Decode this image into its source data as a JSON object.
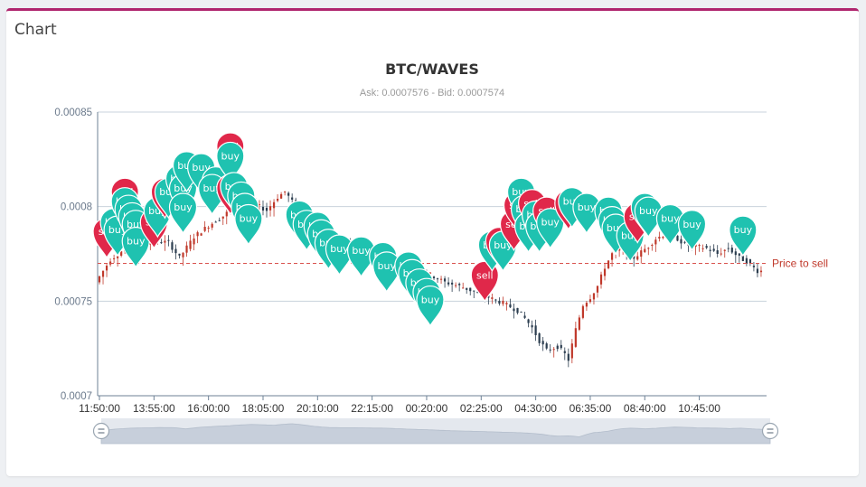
{
  "card": {
    "title": "Chart"
  },
  "chart_data": {
    "type": "candlestick",
    "title": "BTC/WAVES",
    "subtitle": "Ask: 0.0007576 - Bid: 0.0007574",
    "y_ticks": [
      "0.00085",
      "0.0008",
      "0.00075",
      "0.0007"
    ],
    "ylim": [
      0.0007,
      0.00085
    ],
    "x_ticks": [
      "11:50:00",
      "13:55:00",
      "16:00:00",
      "18:05:00",
      "20:10:00",
      "22:15:00",
      "00:20:00",
      "02:25:00",
      "04:30:00",
      "06:35:00",
      "08:40:00",
      "10:45:00"
    ],
    "grid": true,
    "price_to_sell": {
      "value": 0.00077,
      "label": "Price to sell"
    },
    "colors": {
      "buy": "#1fc2b0",
      "sell": "#e0284a",
      "up": "#c0392b",
      "down": "#2c3e50",
      "axis": "#6e8296",
      "mark_line": "#d9534f"
    },
    "price_path": [
      [
        0,
        0.00076
      ],
      [
        4,
        0.000772
      ],
      [
        8,
        0.000778
      ],
      [
        12,
        0.00078
      ],
      [
        16,
        0.000782
      ],
      [
        20,
        0.000781
      ],
      [
        23,
        0.000773
      ],
      [
        27,
        0.000784
      ],
      [
        31,
        0.00079
      ],
      [
        35,
        0.000795
      ],
      [
        38,
        0.0008
      ],
      [
        41,
        0.000803
      ],
      [
        44,
        0.000801
      ],
      [
        47,
        0.000798
      ],
      [
        50,
        0.000805
      ],
      [
        52,
        0.000808
      ],
      [
        55,
        0.0008
      ],
      [
        58,
        0.00079
      ],
      [
        62,
        0.000782
      ],
      [
        65,
        0.000781
      ],
      [
        69,
        0.000781
      ],
      [
        73,
        0.000779
      ],
      [
        77,
        0.000778
      ],
      [
        80,
        0.000775
      ],
      [
        84,
        0.000771
      ],
      [
        88,
        0.000768
      ],
      [
        92,
        0.000764
      ],
      [
        96,
        0.00076
      ],
      [
        100,
        0.000758
      ],
      [
        104,
        0.000755
      ],
      [
        108,
        0.000752
      ],
      [
        112,
        0.000749
      ],
      [
        116,
        0.000745
      ],
      [
        118,
        0.000741
      ],
      [
        120,
        0.000736
      ],
      [
        122,
        0.000729
      ],
      [
        124,
        0.000724
      ],
      [
        127,
        0.000726
      ],
      [
        129,
        0.000722
      ],
      [
        130,
        0.000719
      ],
      [
        132,
        0.000735
      ],
      [
        134,
        0.000748
      ],
      [
        136,
        0.000752
      ],
      [
        138,
        0.000758
      ],
      [
        140,
        0.000768
      ],
      [
        142,
        0.000775
      ],
      [
        144,
        0.000778
      ],
      [
        146,
        0.000776
      ],
      [
        148,
        0.000773
      ],
      [
        150,
        0.000776
      ],
      [
        152,
        0.000779
      ],
      [
        154,
        0.000783
      ],
      [
        156,
        0.000785
      ],
      [
        158,
        0.000784
      ],
      [
        160,
        0.000783
      ],
      [
        162,
        0.00078
      ],
      [
        165,
        0.000779
      ],
      [
        168,
        0.000778
      ],
      [
        171,
        0.000775
      ],
      [
        174,
        0.000778
      ],
      [
        177,
        0.000773
      ],
      [
        179,
        0.000771
      ],
      [
        182,
        0.000766
      ]
    ],
    "markers": [
      {
        "kind": "sell",
        "x": 2,
        "y": 0.000773
      },
      {
        "kind": "buy",
        "x": 4,
        "y": 0.000778
      },
      {
        "kind": "buy",
        "x": 5,
        "y": 0.000774
      },
      {
        "kind": "sell",
        "x": 7,
        "y": 0.000794
      },
      {
        "kind": "buy",
        "x": 7,
        "y": 0.000789
      },
      {
        "kind": "buy",
        "x": 8,
        "y": 0.000785
      },
      {
        "kind": "buy",
        "x": 9,
        "y": 0.000781
      },
      {
        "kind": "buy",
        "x": 10,
        "y": 0.000777
      },
      {
        "kind": "buy",
        "x": 10,
        "y": 0.000768
      },
      {
        "kind": "sell",
        "x": 15,
        "y": 0.000778
      },
      {
        "kind": "buy",
        "x": 16,
        "y": 0.000784
      },
      {
        "kind": "sell",
        "x": 18,
        "y": 0.000794
      },
      {
        "kind": "buy",
        "x": 19,
        "y": 0.000794
      },
      {
        "kind": "buy",
        "x": 22,
        "y": 0.000801
      },
      {
        "kind": "buy",
        "x": 23,
        "y": 0.000796
      },
      {
        "kind": "buy",
        "x": 23,
        "y": 0.000786
      },
      {
        "kind": "buy",
        "x": 24,
        "y": 0.000808
      },
      {
        "kind": "buy",
        "x": 28,
        "y": 0.000807
      },
      {
        "kind": "buy",
        "x": 32,
        "y": 0.0008
      },
      {
        "kind": "buy",
        "x": 31,
        "y": 0.000796
      },
      {
        "kind": "sell",
        "x": 36,
        "y": 0.000796
      },
      {
        "kind": "sell",
        "x": 36,
        "y": 0.000818
      },
      {
        "kind": "buy",
        "x": 36,
        "y": 0.000813
      },
      {
        "kind": "buy",
        "x": 37,
        "y": 0.000797
      },
      {
        "kind": "buy",
        "x": 39,
        "y": 0.000792
      },
      {
        "kind": "buy",
        "x": 40,
        "y": 0.000786
      },
      {
        "kind": "buy",
        "x": 41,
        "y": 0.00078
      },
      {
        "kind": "buy",
        "x": 55,
        "y": 0.000782
      },
      {
        "kind": "buy",
        "x": 57,
        "y": 0.000777
      },
      {
        "kind": "buy",
        "x": 60,
        "y": 0.000776
      },
      {
        "kind": "buy",
        "x": 61,
        "y": 0.000772
      },
      {
        "kind": "buy",
        "x": 63,
        "y": 0.000767
      },
      {
        "kind": "buy",
        "x": 66,
        "y": 0.000764
      },
      {
        "kind": "buy",
        "x": 72,
        "y": 0.000763
      },
      {
        "kind": "buy",
        "x": 78,
        "y": 0.00076
      },
      {
        "kind": "buy",
        "x": 79,
        "y": 0.000755
      },
      {
        "kind": "buy",
        "x": 85,
        "y": 0.000755
      },
      {
        "kind": "buy",
        "x": 86,
        "y": 0.000751
      },
      {
        "kind": "buy",
        "x": 88,
        "y": 0.000746
      },
      {
        "kind": "buy",
        "x": 90,
        "y": 0.000741
      },
      {
        "kind": "buy",
        "x": 91,
        "y": 0.000737
      },
      {
        "kind": "sell",
        "x": 106,
        "y": 0.00075
      },
      {
        "kind": "buy",
        "x": 108,
        "y": 0.000766
      },
      {
        "kind": "sell",
        "x": 110,
        "y": 0.000768
      },
      {
        "kind": "buy",
        "x": 111,
        "y": 0.000766
      },
      {
        "kind": "sell",
        "x": 114,
        "y": 0.000777
      },
      {
        "kind": "sell",
        "x": 115,
        "y": 0.000787
      },
      {
        "kind": "buy",
        "x": 116,
        "y": 0.000794
      },
      {
        "kind": "buy",
        "x": 117,
        "y": 0.000785
      },
      {
        "kind": "buy",
        "x": 118,
        "y": 0.000776
      },
      {
        "kind": "sell",
        "x": 119,
        "y": 0.000788
      },
      {
        "kind": "buy",
        "x": 120,
        "y": 0.000782
      },
      {
        "kind": "buy",
        "x": 121,
        "y": 0.000776
      },
      {
        "kind": "sell",
        "x": 123,
        "y": 0.000784
      },
      {
        "kind": "buy",
        "x": 124,
        "y": 0.000778
      },
      {
        "kind": "sell",
        "x": 129,
        "y": 0.000788
      },
      {
        "kind": "buy",
        "x": 130,
        "y": 0.000789
      },
      {
        "kind": "buy",
        "x": 134,
        "y": 0.000786
      },
      {
        "kind": "buy",
        "x": 140,
        "y": 0.000784
      },
      {
        "kind": "buy",
        "x": 141,
        "y": 0.000779
      },
      {
        "kind": "buy",
        "x": 142,
        "y": 0.000775
      },
      {
        "kind": "buy",
        "x": 146,
        "y": 0.000771
      },
      {
        "kind": "sell",
        "x": 148,
        "y": 0.000781
      },
      {
        "kind": "buy",
        "x": 150,
        "y": 0.000786
      },
      {
        "kind": "buy",
        "x": 151,
        "y": 0.000784
      },
      {
        "kind": "buy",
        "x": 157,
        "y": 0.00078
      },
      {
        "kind": "buy",
        "x": 163,
        "y": 0.000777
      },
      {
        "kind": "buy",
        "x": 177,
        "y": 0.000774
      }
    ],
    "marker_labels": {
      "buy": "buy",
      "sell": "sell"
    }
  },
  "zoom": {
    "start_handle": "start-handle",
    "end_handle": "end-handle"
  }
}
